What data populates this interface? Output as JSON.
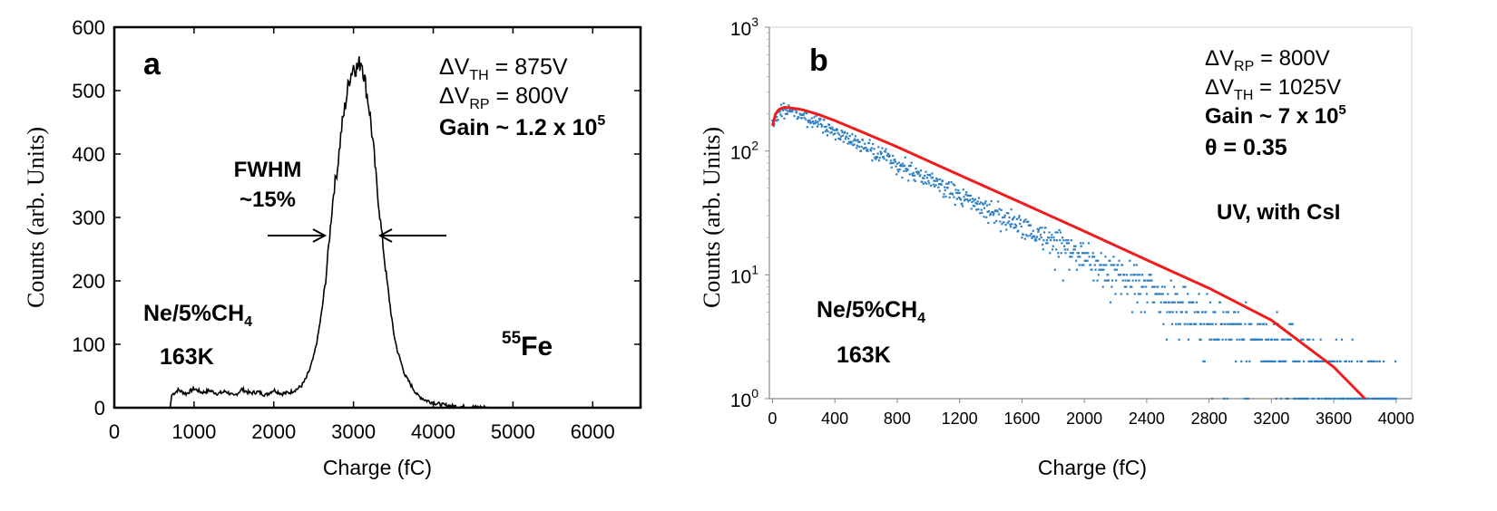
{
  "chart_data": [
    {
      "type": "line",
      "panel_label": "a",
      "title": "",
      "xlabel": "Charge (fC)",
      "ylabel": "Counts (arb. Units)",
      "xlim": [
        0,
        6600
      ],
      "ylim": [
        0,
        600
      ],
      "xticks": [
        0,
        1000,
        2000,
        3000,
        4000,
        5000,
        6000
      ],
      "yticks": [
        0,
        100,
        200,
        300,
        400,
        500,
        600
      ],
      "grid": false,
      "series": [
        {
          "name": "55Fe spectrum",
          "color": "#000000",
          "x": [
            700,
            720,
            800,
            900,
            1000,
            1100,
            1200,
            1300,
            1400,
            1500,
            1600,
            1700,
            1800,
            1900,
            2000,
            2100,
            2200,
            2300,
            2350,
            2400,
            2450,
            2500,
            2550,
            2600,
            2650,
            2700,
            2750,
            2800,
            2850,
            2900,
            2950,
            3000,
            3050,
            3100,
            3150,
            3200,
            3250,
            3300,
            3350,
            3400,
            3450,
            3500,
            3550,
            3600,
            3650,
            3700,
            3750,
            3800,
            3900,
            4000,
            4100,
            4200,
            4300,
            4500,
            4800,
            5200,
            6000,
            6600
          ],
          "y": [
            0,
            20,
            28,
            22,
            30,
            24,
            27,
            22,
            26,
            18,
            29,
            23,
            25,
            20,
            28,
            22,
            24,
            30,
            35,
            45,
            60,
            80,
            110,
            150,
            200,
            270,
            340,
            380,
            440,
            480,
            520,
            540,
            535,
            550,
            510,
            470,
            410,
            340,
            280,
            220,
            170,
            120,
            90,
            70,
            50,
            40,
            30,
            20,
            12,
            8,
            5,
            3,
            2,
            1,
            0,
            0,
            0,
            0
          ]
        }
      ],
      "annotations": {
        "fwhm_line1": "FWHM",
        "fwhm_line2": "~15%",
        "dv_th": "875V",
        "dv_rp": "800V",
        "gain_prefix": "Gain ~ 1.2 x 10",
        "gain_exp": "5",
        "gas": "Ne/5%CH",
        "gas_sub": "4",
        "temp": "163K",
        "source_sup": "55",
        "source": "Fe"
      }
    },
    {
      "type": "scatter",
      "panel_label": "b",
      "title": "",
      "xlabel": "Charge (fC)",
      "ylabel": "Counts (arb. Units)",
      "xlim": [
        -20,
        4100
      ],
      "ylim": [
        1,
        1000
      ],
      "yscale": "log",
      "xticks": [
        0,
        400,
        800,
        1200,
        1600,
        2000,
        2400,
        2800,
        3200,
        3600,
        4000
      ],
      "yticks": [
        1,
        10,
        100,
        1000
      ],
      "ytick_exponents": [
        "0",
        "1",
        "2",
        "3"
      ],
      "ytick_base": "10",
      "grid": false,
      "series": [
        {
          "name": "data",
          "color": "#2e7fc3",
          "marker": "dot",
          "x_start": 0,
          "x_end": 4000,
          "x_step": 4,
          "trend": "exponential decay, ~225 at 80 fC to ~1 at 3800 fC, Poisson scatter"
        },
        {
          "name": "fit",
          "color": "#ee1c1c",
          "x": [
            0,
            20,
            40,
            60,
            80,
            100,
            150,
            200,
            300,
            400,
            600,
            800,
            1000,
            1200,
            1600,
            2000,
            2400,
            2800,
            3200,
            3600,
            3800
          ],
          "y": [
            160,
            200,
            215,
            222,
            225,
            224,
            220,
            214,
            196,
            176,
            138,
            108,
            83,
            64,
            38,
            22.5,
            13.2,
            7.8,
            4.3,
            1.8,
            1.0
          ]
        }
      ],
      "annotations": {
        "dv_rp": "800V",
        "dv_th": "1025V",
        "gain_prefix": "Gain ~ 7 x 10",
        "gain_exp": "5",
        "theta": "θ = 0.35",
        "uv": "UV,  with  CsI",
        "gas": "Ne/5%CH",
        "gas_sub": "4",
        "temp": "163K"
      }
    }
  ],
  "labels": {
    "delta": "ΔV",
    "sub_th": "TH",
    "sub_rp": "RP",
    "equals": " = "
  }
}
